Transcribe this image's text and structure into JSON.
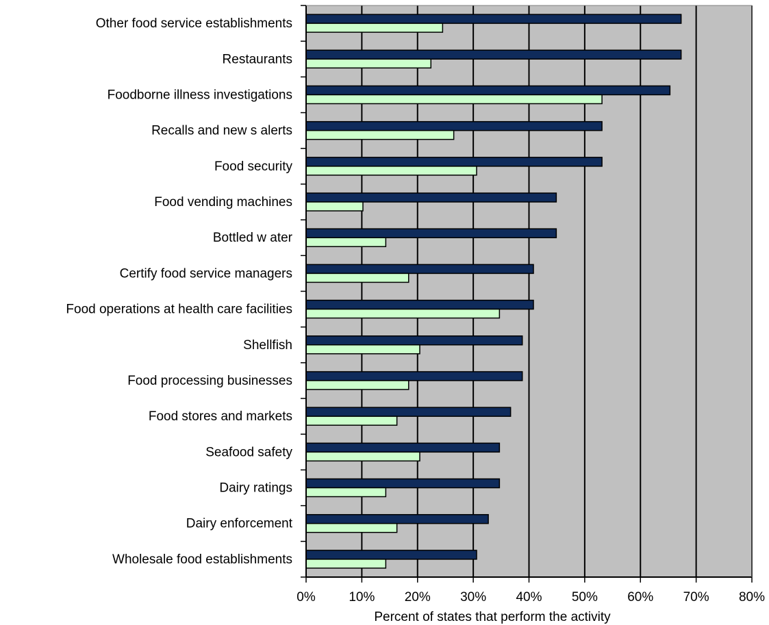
{
  "chart_data": {
    "type": "bar",
    "orientation": "horizontal",
    "title": "",
    "xlabel": "Percent of states that perform the activity",
    "ylabel": "",
    "xlim": [
      0,
      80
    ],
    "x_tick_labels": [
      "0%",
      "10%",
      "20%",
      "30%",
      "40%",
      "50%",
      "60%",
      "70%",
      "80%"
    ],
    "x_ticks": [
      0,
      10,
      20,
      30,
      40,
      50,
      60,
      70,
      80
    ],
    "grid": "vertical gridlines at each 10%",
    "plot_background": "#c0c0c0",
    "legend": "none",
    "categories": [
      "Other food service establishments",
      "Restaurants",
      "Foodborne illness investigations",
      "Recalls and new s alerts",
      "Food security",
      "Food vending machines",
      "Bottled w ater",
      "Certify food service managers",
      "Food operations at health care facilities",
      "Shellfish",
      "Food processing businesses",
      "Food stores and markets",
      "Seafood safety",
      "Dairy ratings",
      "Dairy enforcement",
      "Wholesale food establishments"
    ],
    "series": [
      {
        "color": "#0f2b5b",
        "values": [
          67.3,
          67.3,
          65.3,
          53.1,
          53.1,
          44.9,
          44.9,
          40.8,
          40.8,
          38.8,
          38.8,
          36.7,
          34.7,
          34.7,
          32.7,
          30.6
        ]
      },
      {
        "color": "#ccffcc",
        "values": [
          24.5,
          22.4,
          53.1,
          26.5,
          30.6,
          10.2,
          14.3,
          18.4,
          34.7,
          20.4,
          18.4,
          16.3,
          20.4,
          14.3,
          16.3,
          14.3
        ]
      }
    ]
  }
}
